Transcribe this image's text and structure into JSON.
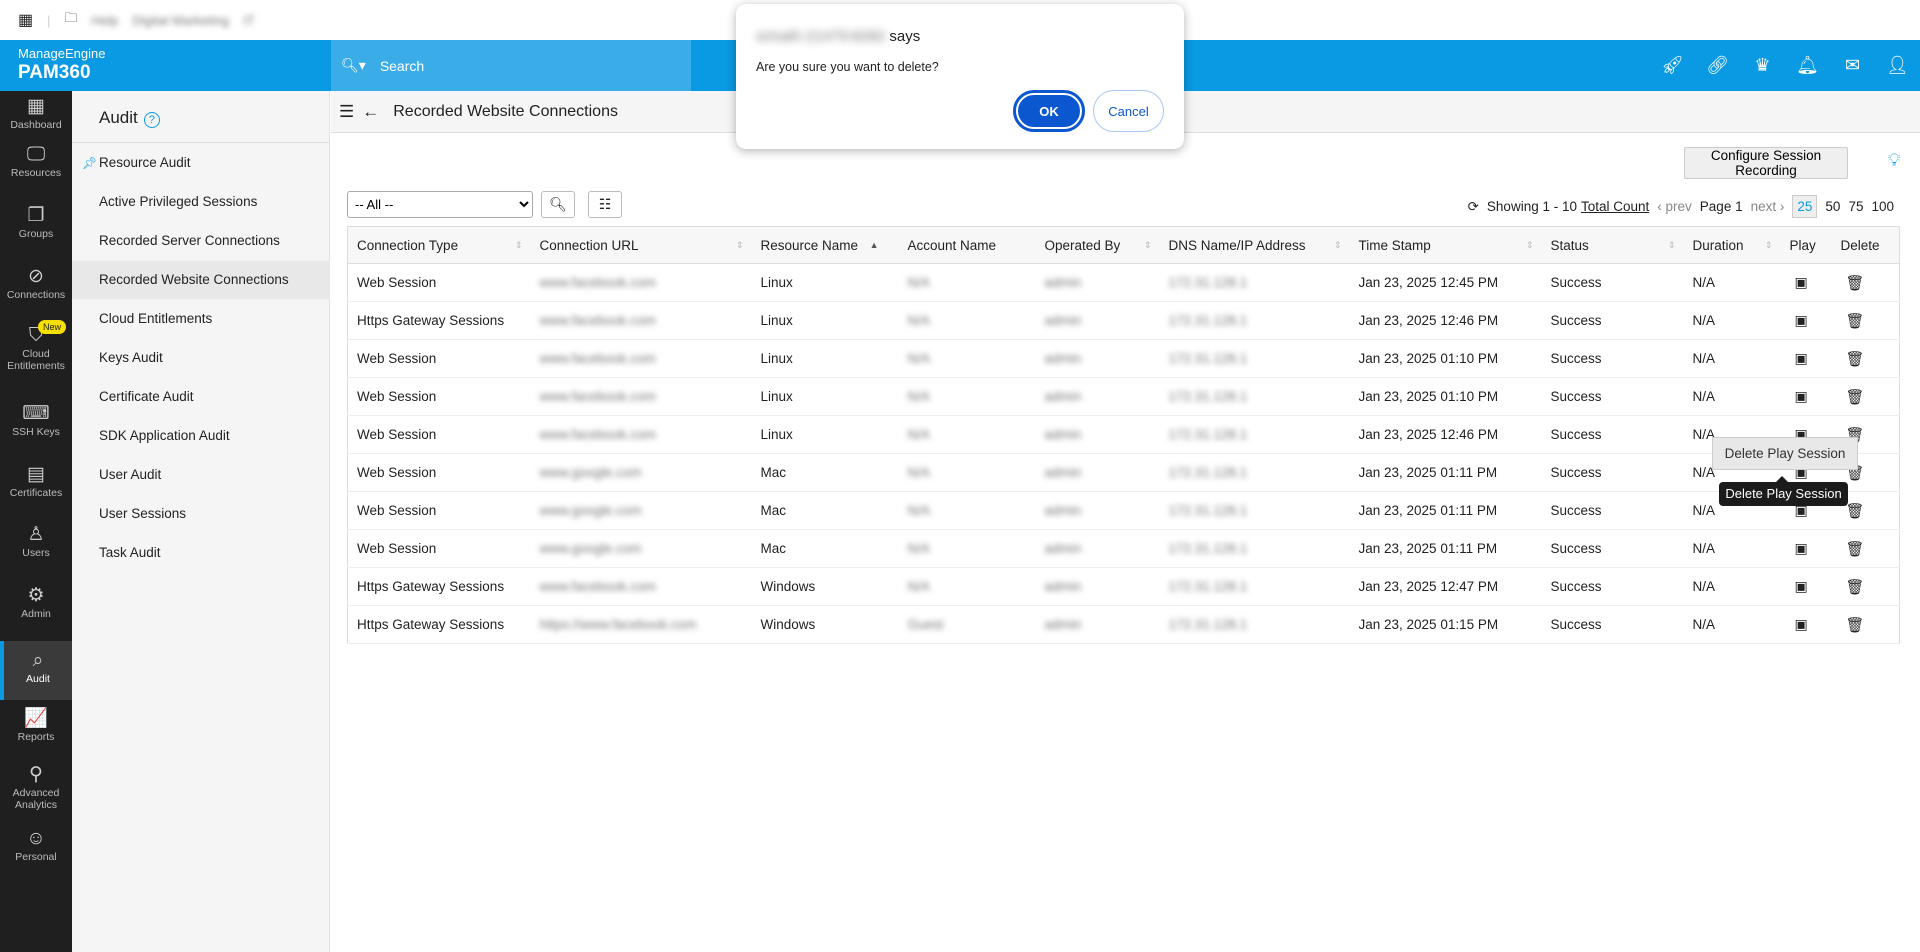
{
  "topbar": {
    "folders": [
      "Help",
      "Digital Marketing",
      "IT"
    ]
  },
  "header": {
    "brand": "ManageEngine",
    "product": "PAM360",
    "search_placeholder": "Search",
    "icons": [
      "rocket-icon",
      "link-icon",
      "crown-icon",
      "bell-icon",
      "mail-icon",
      "user-icon"
    ]
  },
  "nav": [
    {
      "label": "Dashboard",
      "icon": "▦"
    },
    {
      "label": "Resources",
      "icon": "🖵"
    },
    {
      "label": "Groups",
      "icon": "❐"
    },
    {
      "label": "Connections",
      "icon": "⊘"
    },
    {
      "label": "Cloud Entitlements",
      "icon": "⛉",
      "badge": "New"
    },
    {
      "label": "SSH Keys",
      "icon": "⌨"
    },
    {
      "label": "Certificates",
      "icon": "▤"
    },
    {
      "label": "Users",
      "icon": "♙"
    },
    {
      "label": "Admin",
      "icon": "⚙"
    },
    {
      "label": "Audit",
      "icon": "⌕",
      "active": true
    },
    {
      "label": "Reports",
      "icon": "📈"
    },
    {
      "label": "Advanced Analytics",
      "icon": "⚲"
    },
    {
      "label": "Personal",
      "icon": "☺"
    }
  ],
  "audit": {
    "title": "Audit",
    "help": "?",
    "items": [
      "Resource Audit",
      "Active Privileged Sessions",
      "Recorded Server Connections",
      "Recorded Website Connections",
      "Cloud Entitlements",
      "Keys Audit",
      "Certificate Audit",
      "SDK Application Audit",
      "User Audit",
      "User Sessions",
      "Task Audit"
    ],
    "active": "Recorded Website Connections"
  },
  "page": {
    "title": "Recorded Website Connections",
    "configure": "Configure Session Recording",
    "filter": "-- All --"
  },
  "pager": {
    "showing": "Showing 1 - 10",
    "total": "Total Count",
    "prev": "prev",
    "page": "Page 1",
    "next": "next",
    "sizes": [
      "25",
      "50",
      "75",
      "100"
    ],
    "selected": "25"
  },
  "table": {
    "columns": [
      "Connection Type",
      "Connection URL",
      "Resource Name",
      "Account Name",
      "Operated By",
      "DNS Name/IP Address",
      "Time Stamp",
      "Status",
      "Duration",
      "Play",
      "Delete"
    ],
    "rows": [
      [
        "Web Session",
        "www.facebook.com",
        "Linux",
        "N/A",
        "admin",
        "172.31.128.1",
        "Jan 23, 2025 12:45 PM",
        "Success",
        "N/A"
      ],
      [
        "Https Gateway Sessions",
        "www.facebook.com",
        "Linux",
        "N/A",
        "admin",
        "172.31.128.1",
        "Jan 23, 2025 12:46 PM",
        "Success",
        "N/A"
      ],
      [
        "Web Session",
        "www.facebook.com",
        "Linux",
        "N/A",
        "admin",
        "172.31.128.1",
        "Jan 23, 2025 01:10 PM",
        "Success",
        "N/A"
      ],
      [
        "Web Session",
        "www.facebook.com",
        "Linux",
        "N/A",
        "admin",
        "172.31.128.1",
        "Jan 23, 2025 01:10 PM",
        "Success",
        "N/A"
      ],
      [
        "Web Session",
        "www.facebook.com",
        "Linux",
        "N/A",
        "admin",
        "172.31.128.1",
        "Jan 23, 2025 12:46 PM",
        "Success",
        "N/A"
      ],
      [
        "Web Session",
        "www.google.com",
        "Mac",
        "N/A",
        "admin",
        "172.31.128.1",
        "Jan 23, 2025 01:11 PM",
        "Success",
        "N/A"
      ],
      [
        "Web Session",
        "www.google.com",
        "Mac",
        "N/A",
        "admin",
        "172.31.128.1",
        "Jan 23, 2025 01:11 PM",
        "Success",
        "N/A"
      ],
      [
        "Web Session",
        "www.google.com",
        "Mac",
        "N/A",
        "admin",
        "172.31.128.1",
        "Jan 23, 2025 01:11 PM",
        "Success",
        "N/A"
      ],
      [
        "Https Gateway Sessions",
        "www.facebook.com",
        "Windows",
        "N/A",
        "admin",
        "172.31.128.1",
        "Jan 23, 2025 12:47 PM",
        "Success",
        "N/A"
      ],
      [
        "Https Gateway Sessions",
        "https://www.facebook.com",
        "Windows",
        "Guest",
        "admin",
        "172.31.128.1",
        "Jan 23, 2025 01:15 PM",
        "Success",
        "N/A"
      ]
    ]
  },
  "dialog": {
    "origin": "srinath-21479:8282",
    "says": " says",
    "message": "Are you sure you want to delete?",
    "ok": "OK",
    "cancel": "Cancel"
  },
  "tooltip": {
    "box": "Delete Play Session",
    "tip": "Delete Play Session"
  },
  "colors": {
    "brand": "#0a9ae3",
    "ok": "#0b57d0"
  }
}
